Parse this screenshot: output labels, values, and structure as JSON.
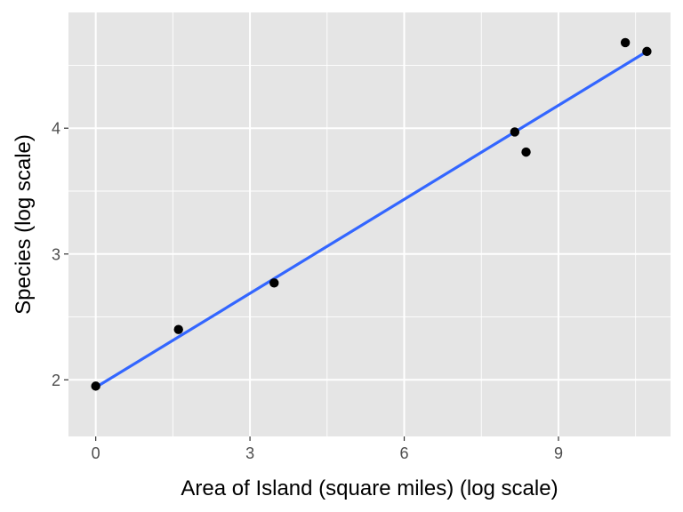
{
  "chart_data": {
    "type": "scatter",
    "title": "",
    "xlabel": "Area of Island (square miles) (log scale)",
    "ylabel": "Species (log scale)",
    "xlim": [
      -0.53,
      11.18
    ],
    "ylim": [
      1.55,
      4.92
    ],
    "x_scale": "log",
    "y_scale": "log",
    "grid": true,
    "x_ticks": [
      0,
      3,
      6,
      9
    ],
    "x_tick_labels": [
      "0",
      "3",
      "6",
      "9"
    ],
    "y_ticks": [
      2,
      3,
      4
    ],
    "y_tick_labels": [
      "2",
      "3",
      "4"
    ],
    "series": [
      {
        "x": [
          0.0,
          1.61,
          3.47,
          8.15,
          8.37,
          10.3,
          10.72
        ],
        "y": [
          1.95,
          2.4,
          2.77,
          3.97,
          3.81,
          4.68,
          4.61
        ]
      }
    ],
    "fit_line": {
      "x": [
        0.0,
        10.72
      ],
      "y": [
        1.94,
        4.61
      ]
    },
    "colors": {
      "panel_background": "#e5e5e5",
      "grid_major": "#ffffff",
      "point": "#000000",
      "fit_line": "#3366ff"
    }
  }
}
